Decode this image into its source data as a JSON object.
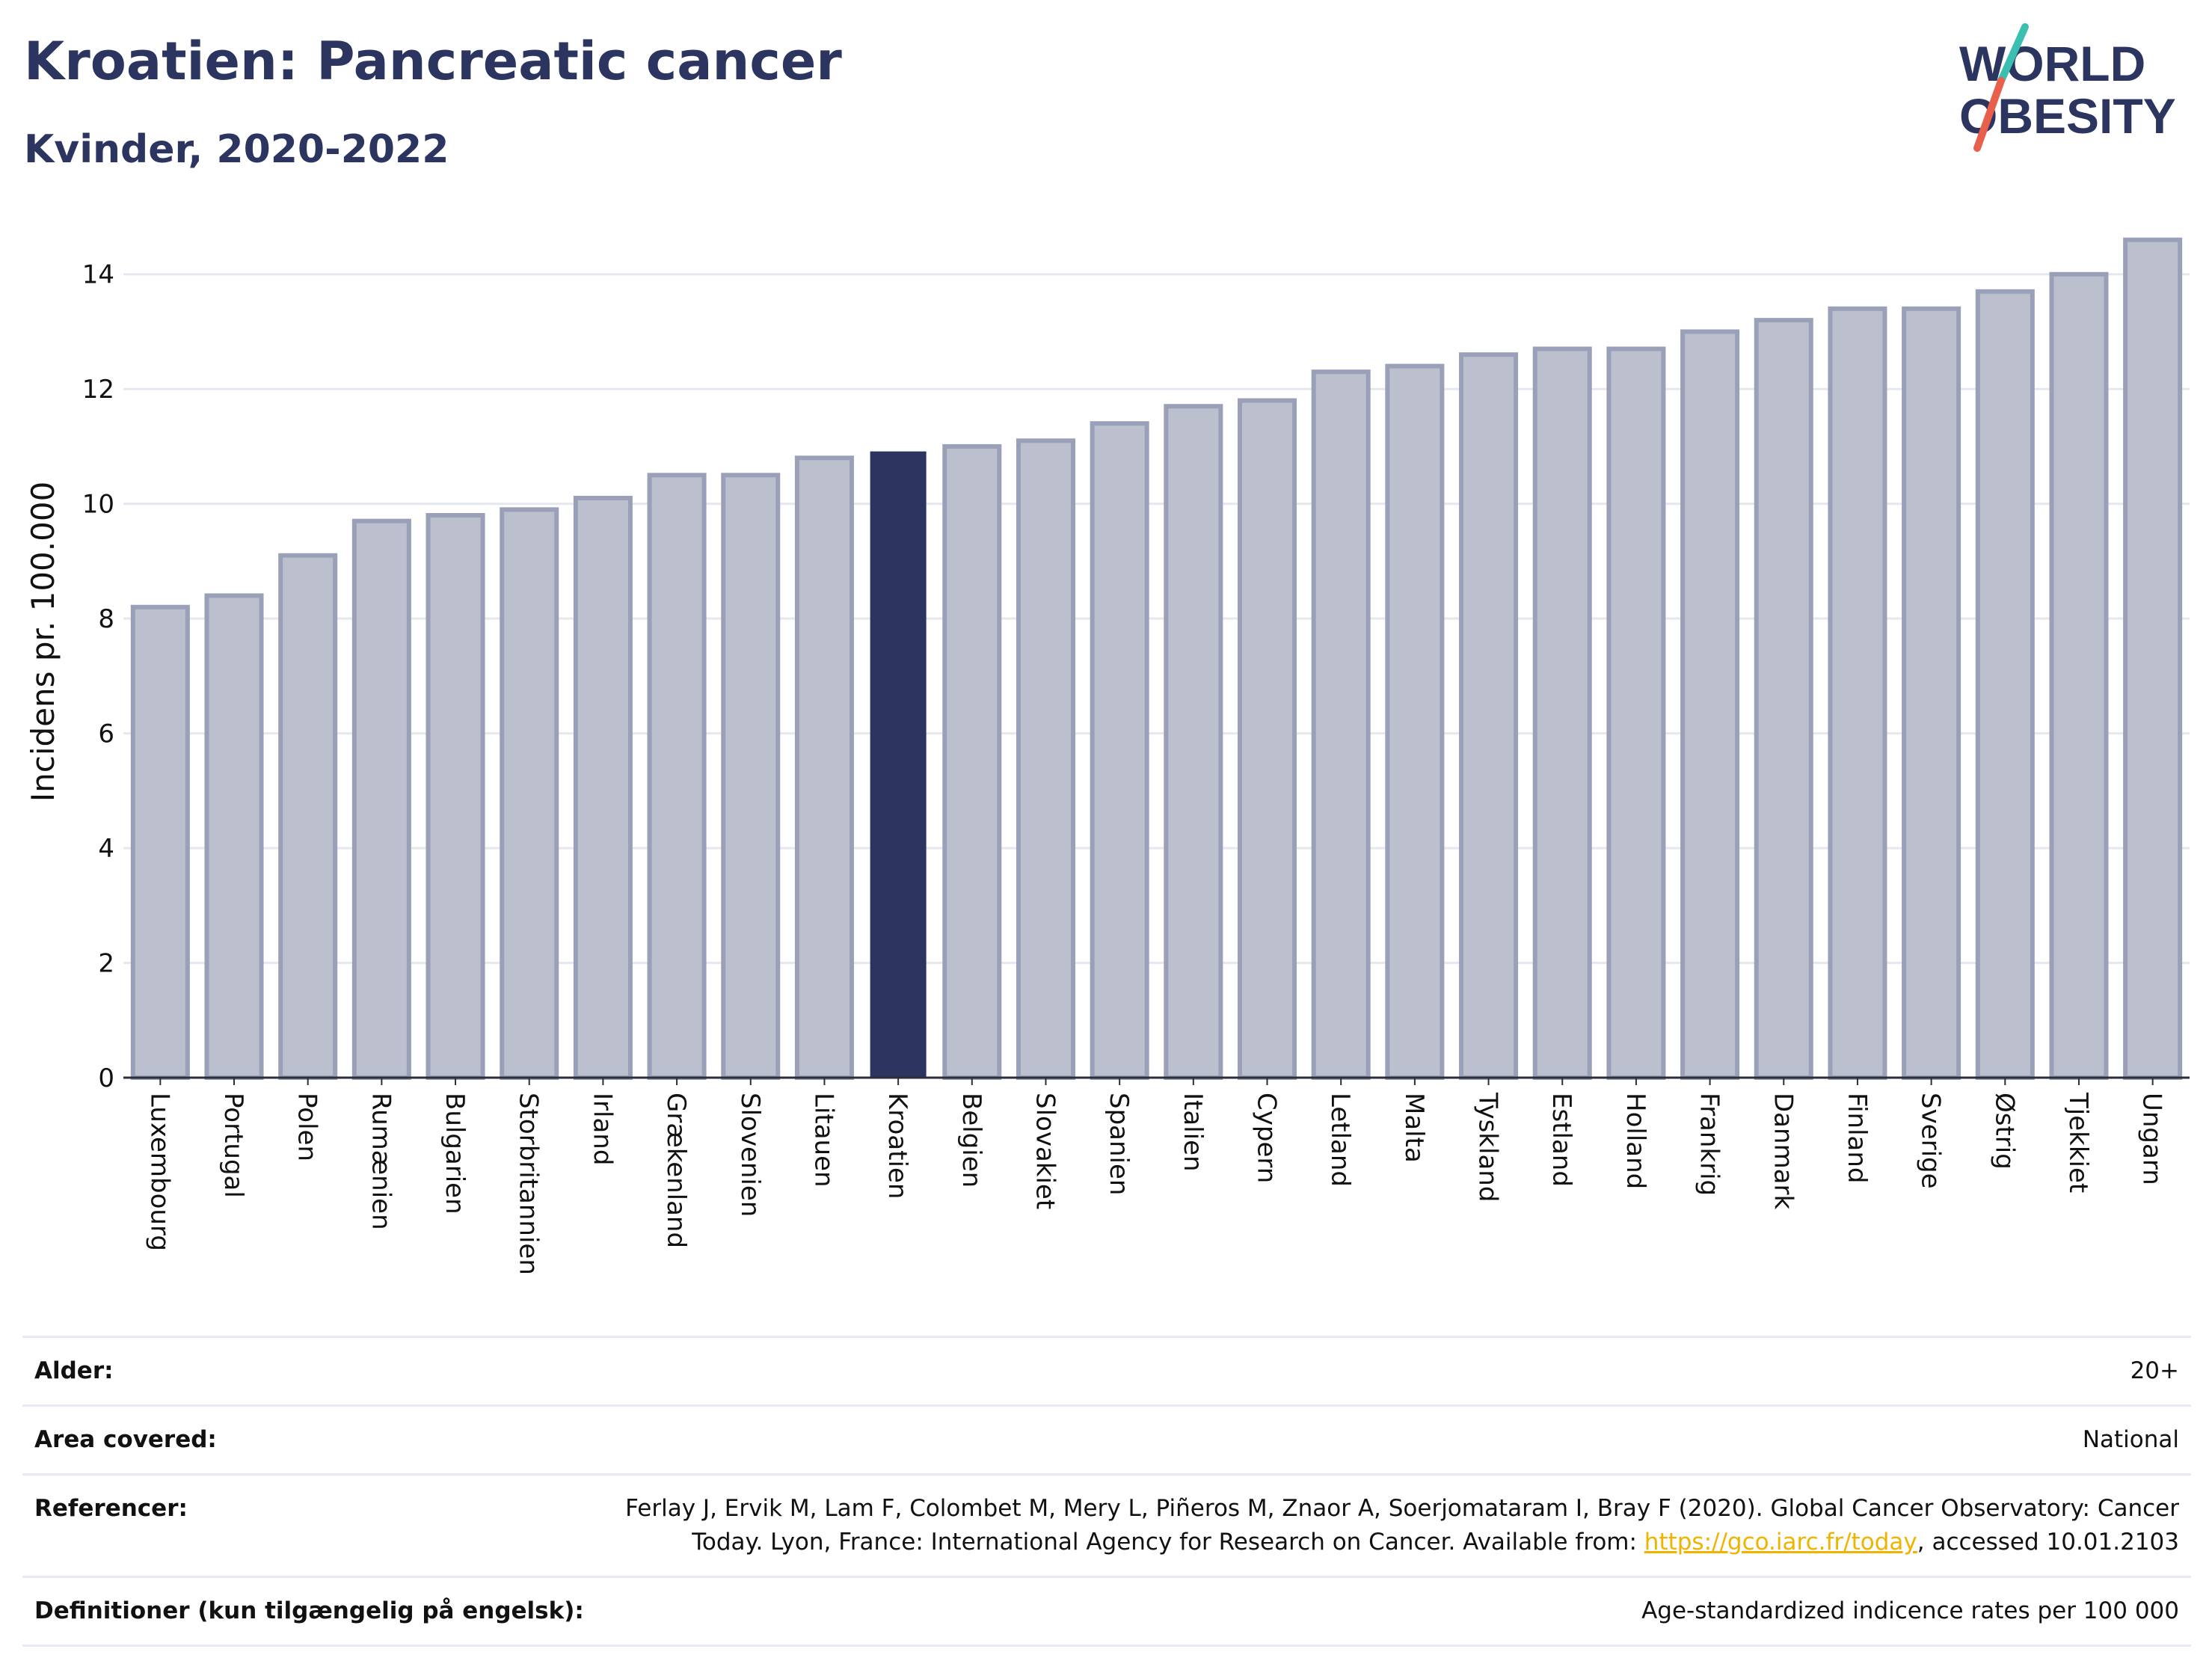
{
  "header": {
    "title": "Kroatien: Pancreatic cancer",
    "subtitle": "Kvinder, 2020-2022"
  },
  "logo": {
    "line1": "WORLD",
    "line2": "OBESITY",
    "colors": {
      "text": "#2b3560",
      "accent_teal": "#3bbfb0",
      "accent_red": "#e8604c"
    }
  },
  "chart_data": {
    "type": "bar",
    "ylabel": "Incidens pr. 100.000",
    "xlabel": "",
    "ylim": [
      0,
      15
    ],
    "yticks": [
      0,
      2,
      4,
      6,
      8,
      10,
      12,
      14
    ],
    "grid": true,
    "highlight_category": "Kroatien",
    "colors": {
      "bar": "#bcc0ce",
      "bar_border": "#9aa0b8",
      "highlight": "#2b3560",
      "grid": "#e6e8ef",
      "axis": "#2c2f3a"
    },
    "categories": [
      "Luxembourg",
      "Portugal",
      "Polen",
      "Rumænien",
      "Bulgarien",
      "Storbritannien",
      "Irland",
      "Grækenland",
      "Slovenien",
      "Litauen",
      "Kroatien",
      "Belgien",
      "Slovakiet",
      "Spanien",
      "Italien",
      "Cypern",
      "Letland",
      "Malta",
      "Tyskland",
      "Estland",
      "Holland",
      "Frankrig",
      "Danmark",
      "Finland",
      "Sverige",
      "Østrig",
      "Tjekkiet",
      "Ungarn"
    ],
    "values": [
      8.2,
      8.4,
      9.1,
      9.7,
      9.8,
      9.9,
      10.1,
      10.5,
      10.5,
      10.8,
      10.9,
      11.0,
      11.1,
      11.4,
      11.7,
      11.8,
      12.3,
      12.4,
      12.6,
      12.7,
      12.7,
      13.0,
      13.2,
      13.4,
      13.4,
      13.7,
      14.0,
      14.6
    ]
  },
  "info": {
    "age_label": "Alder:",
    "age_value": "20+",
    "area_label": "Area covered:",
    "area_value": "National",
    "ref_label": "Referencer:",
    "ref_text_1": "Ferlay J, Ervik M, Lam F, Colombet M, Mery L, Piñeros M, Znaor A, Soerjomataram I, Bray F (2020). Global Cancer Observatory: Cancer Today. Lyon, France: International Agency for Research on Cancer. Available from: ",
    "ref_link": "https://gco.iarc.fr/today",
    "ref_text_2": ", accessed 10.01.2103",
    "def_label": "Definitioner (kun tilgængelig på engelsk):",
    "def_value": "Age-standardized indicence rates per 100 000"
  }
}
